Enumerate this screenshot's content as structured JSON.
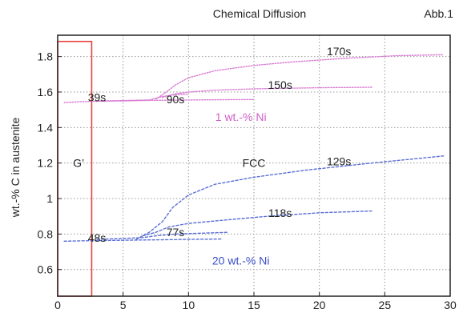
{
  "chart_data": {
    "type": "line",
    "title": "Chemical Diffusion",
    "figure_label": "Abb.1",
    "ylabel": "wt.-% C in austenite",
    "xlim": [
      0,
      30
    ],
    "ylim": [
      0.45,
      1.92
    ],
    "xticks": [
      0,
      5,
      10,
      15,
      20,
      25,
      30
    ],
    "xtick_labels": [
      "0",
      "5",
      "10",
      "15",
      "20",
      "25",
      "30"
    ],
    "yticks": [
      0.6,
      0.8,
      1.0,
      1.2,
      1.4,
      1.6,
      1.8
    ],
    "ytick_labels": [
      "0.6",
      "0.8",
      "1",
      "1.2",
      "1.4",
      "1.6",
      "1.8"
    ],
    "grid": true,
    "colors": {
      "series_1": "#d97ad3",
      "series_2": "#5a6fd6",
      "box": "#e8453c"
    },
    "series": [
      {
        "name": "1 wt.-% Ni",
        "color": "#d97ad3",
        "curves": [
          {
            "label": "39s",
            "x": [
              0.5,
              1.5,
              3,
              5,
              7,
              10,
              13,
              15
            ],
            "y": [
              1.54,
              1.545,
              1.548,
              1.55,
              1.553,
              1.555,
              1.557,
              1.558
            ]
          },
          {
            "label": "90s",
            "x": [
              3,
              5,
              7,
              8,
              9,
              10
            ],
            "y": [
              1.55,
              1.552,
              1.555,
              1.575,
              1.585,
              1.588
            ]
          },
          {
            "label": "150s",
            "x": [
              8,
              9,
              10,
              12,
              15,
              18,
              21,
              24
            ],
            "y": [
              1.57,
              1.59,
              1.6,
              1.61,
              1.618,
              1.622,
              1.625,
              1.627
            ]
          },
          {
            "label": "170s",
            "x": [
              7.5,
              8.3,
              9,
              10,
              12,
              15,
              18,
              22,
              26,
              29.5
            ],
            "y": [
              1.56,
              1.6,
              1.64,
              1.68,
              1.72,
              1.75,
              1.77,
              1.79,
              1.805,
              1.81
            ]
          }
        ]
      },
      {
        "name": "20 wt.-% Ni",
        "color": "#5a6fd6",
        "curves": [
          {
            "label": "48s",
            "x": [
              0.5,
              2,
              4,
              6,
              8,
              10,
              12.5
            ],
            "y": [
              0.76,
              0.762,
              0.764,
              0.766,
              0.768,
              0.77,
              0.772
            ]
          },
          {
            "label": "77s",
            "x": [
              3,
              5,
              6.5,
              7.5,
              9,
              11,
              13
            ],
            "y": [
              0.77,
              0.775,
              0.78,
              0.79,
              0.8,
              0.805,
              0.81
            ]
          },
          {
            "label": "118s",
            "x": [
              6.5,
              7.5,
              8.5,
              10,
              13,
              16,
              20,
              24
            ],
            "y": [
              0.79,
              0.81,
              0.84,
              0.86,
              0.88,
              0.9,
              0.92,
              0.93
            ]
          },
          {
            "label": "129s",
            "x": [
              6,
              7,
              8,
              8.8,
              10,
              12,
              15,
              19,
              24,
              29.5
            ],
            "y": [
              0.77,
              0.81,
              0.87,
              0.95,
              1.02,
              1.08,
              1.12,
              1.16,
              1.2,
              1.24
            ]
          }
        ]
      }
    ],
    "annotations": [
      {
        "text": "G’",
        "x": 1.6,
        "y": 1.2,
        "color": "#222222"
      },
      {
        "text": "FCC",
        "x": 15,
        "y": 1.2,
        "color": "#222222"
      },
      {
        "text": "39s",
        "x": 3.0,
        "y": 1.57,
        "color": "#222222"
      },
      {
        "text": "90s",
        "x": 9.0,
        "y": 1.56,
        "color": "#222222"
      },
      {
        "text": "150s",
        "x": 17.0,
        "y": 1.64,
        "color": "#222222"
      },
      {
        "text": "170s",
        "x": 21.5,
        "y": 1.83,
        "color": "#222222"
      },
      {
        "text": "1 wt.-% Ni",
        "x": 14,
        "y": 1.46,
        "color": "#cf5fc7"
      },
      {
        "text": "129s",
        "x": 21.5,
        "y": 1.21,
        "color": "#222222"
      },
      {
        "text": "118s",
        "x": 17.0,
        "y": 0.92,
        "color": "#222222"
      },
      {
        "text": "48s",
        "x": 3.0,
        "y": 0.78,
        "color": "#222222"
      },
      {
        "text": "77s",
        "x": 9.0,
        "y": 0.81,
        "color": "#222222"
      },
      {
        "text": "20 wt.-% Ni",
        "x": 14,
        "y": 0.65,
        "color": "#3b4fc8"
      }
    ],
    "region": {
      "x0": 0,
      "x1": 2.6,
      "y0": 0.45,
      "y1": 1.885
    }
  }
}
